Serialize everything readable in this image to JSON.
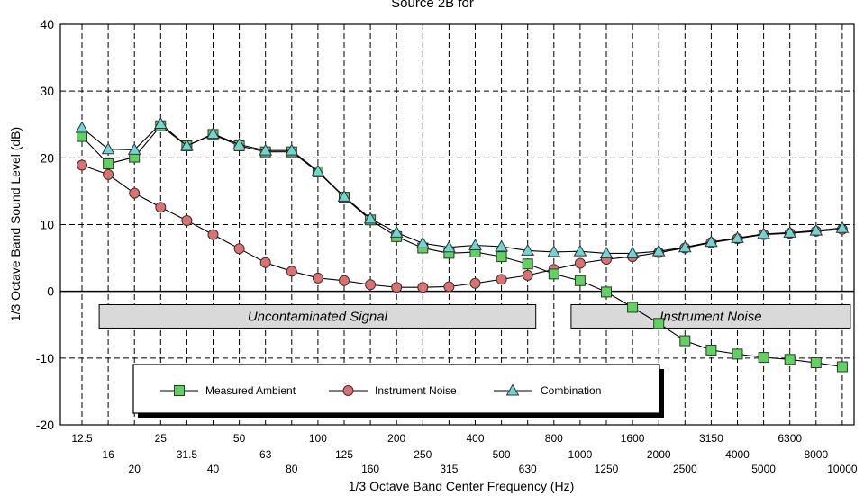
{
  "chart_data": {
    "type": "line",
    "title": "Source 2B for",
    "xlabel": "1/3 Octave Band Center Frequency (Hz)",
    "ylabel": "1/3 Octave Band Sound Level (dB)",
    "ylim": [
      -20,
      40
    ],
    "yticks": [
      "40",
      "30",
      "20",
      "10",
      "0",
      "-10",
      "-20"
    ],
    "grid": true,
    "legend_position": "bottom-center",
    "categories": [
      "12.5",
      "16",
      "20",
      "25",
      "31.5",
      "40",
      "50",
      "63",
      "80",
      "100",
      "125",
      "160",
      "200",
      "250",
      "315",
      "400",
      "500",
      "630",
      "800",
      "1000",
      "1250",
      "1600",
      "2000",
      "2500",
      "3150",
      "4000",
      "5000",
      "6300",
      "8000",
      "10000"
    ],
    "series": [
      {
        "name": "Measured Ambient",
        "marker": "square",
        "color": "#5fd35f",
        "values": [
          23.2,
          19.1,
          20.1,
          24.8,
          21.8,
          23.5,
          21.8,
          20.9,
          20.9,
          17.9,
          14.1,
          10.7,
          8.2,
          6.5,
          5.7,
          5.9,
          5.2,
          4.1,
          2.6,
          1.6,
          -0.1,
          -2.4,
          -4.8,
          -7.4,
          -8.8,
          -9.4,
          -9.9,
          -10.2,
          -10.7,
          -11.3
        ]
      },
      {
        "name": "Instrument Noise",
        "marker": "circle",
        "color": "#e07070",
        "values": [
          18.9,
          17.5,
          14.7,
          12.6,
          10.6,
          8.5,
          6.4,
          4.3,
          3.0,
          2.0,
          1.6,
          1.0,
          0.6,
          0.6,
          0.7,
          1.2,
          1.8,
          2.4,
          3.3,
          4.2,
          4.8,
          5.2,
          5.8,
          6.5,
          7.3,
          7.9,
          8.5,
          8.7,
          9.0,
          9.3
        ]
      },
      {
        "name": "Combination",
        "marker": "triangle",
        "color": "#6fd6d6",
        "values": [
          24.5,
          21.3,
          21.2,
          25.1,
          21.8,
          23.6,
          22.0,
          21.1,
          21.1,
          18.0,
          14.2,
          10.9,
          8.8,
          7.2,
          6.6,
          6.9,
          6.7,
          6.1,
          5.9,
          6.0,
          5.7,
          5.7,
          6.0,
          6.6,
          7.4,
          8.0,
          8.6,
          8.8,
          9.1,
          9.5
        ]
      }
    ],
    "annotations": [
      {
        "text": "Uncontaminated Signal",
        "x_from": "16",
        "x_to": "630",
        "y_from": -2,
        "y_to": -5.5
      },
      {
        "text": "Instrument Noise",
        "x_from": "1000",
        "x_to": "10000",
        "y_from": -2,
        "y_to": -5.5
      }
    ]
  }
}
